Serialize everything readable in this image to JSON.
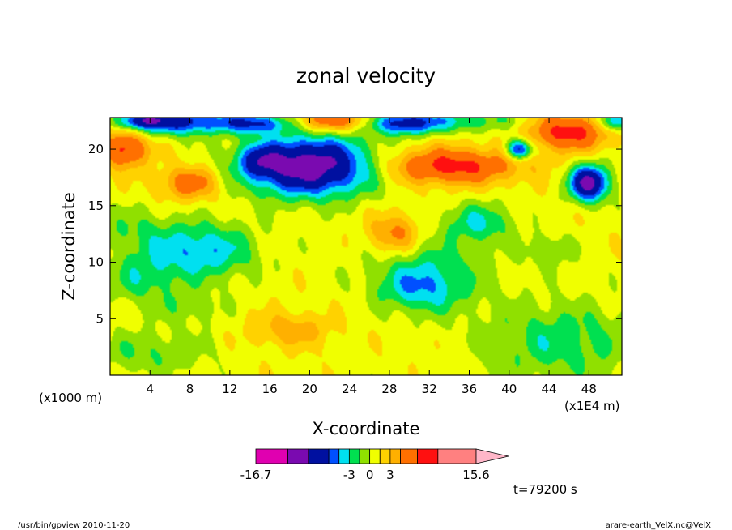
{
  "chart_data": {
    "type": "heatmap",
    "title": "zonal velocity",
    "xlabel": "X-coordinate",
    "ylabel": "Z-coordinate",
    "x_scale_note": "(x1E4 m)",
    "y_scale_note": "(x1000 m)",
    "xlim": [
      0.0,
      51.3
    ],
    "ylim": [
      0.0,
      22.8
    ],
    "x_ticks": [
      4,
      8,
      12,
      16,
      20,
      24,
      28,
      32,
      36,
      40,
      44,
      48
    ],
    "y_ticks": [
      5,
      10,
      15,
      20
    ],
    "colorbar": {
      "min_label": "-16.7",
      "max_label": "15.6",
      "tick_labels": [
        "-3",
        "0",
        "3"
      ],
      "bins": [
        {
          "lo": -16.7,
          "hi": -12.0,
          "color": "#e000b0"
        },
        {
          "lo": -12.0,
          "hi": -9.0,
          "color": "#7a0ab0"
        },
        {
          "lo": -9.0,
          "hi": -6.0,
          "color": "#0010a0"
        },
        {
          "lo": -6.0,
          "hi": -4.5,
          "color": "#0050ff"
        },
        {
          "lo": -4.5,
          "hi": -3.0,
          "color": "#00e0f0"
        },
        {
          "lo": -3.0,
          "hi": -1.5,
          "color": "#00e050"
        },
        {
          "lo": -1.5,
          "hi": 0.0,
          "color": "#90e000"
        },
        {
          "lo": 0.0,
          "hi": 1.5,
          "color": "#f0ff00"
        },
        {
          "lo": 1.5,
          "hi": 3.0,
          "color": "#ffd200"
        },
        {
          "lo": 3.0,
          "hi": 4.5,
          "color": "#ffb000"
        },
        {
          "lo": 4.5,
          "hi": 7.0,
          "color": "#ff7000"
        },
        {
          "lo": 7.0,
          "hi": 10.0,
          "color": "#ff1010"
        },
        {
          "lo": 10.0,
          "hi": 15.6,
          "color": "#ff8080"
        }
      ],
      "overflow_color": "#ffb6c8"
    },
    "time_label": "t=79200 s",
    "field_features": [
      {
        "x": 20.0,
        "z": 18.5,
        "sx": 6.5,
        "sz": 2.6,
        "amp": -12.0
      },
      {
        "x": 15.0,
        "z": 19.0,
        "sx": 2.0,
        "sz": 1.3,
        "amp": -4.0
      },
      {
        "x": 7.0,
        "z": 22.5,
        "sx": 4.0,
        "sz": 1.2,
        "amp": -8.0
      },
      {
        "x": 3.0,
        "z": 22.5,
        "sx": 2.5,
        "sz": 0.8,
        "amp": -7.0
      },
      {
        "x": 22.0,
        "z": 22.5,
        "sx": 4.0,
        "sz": 1.0,
        "amp": 6.0
      },
      {
        "x": 29.5,
        "z": 22.3,
        "sx": 3.5,
        "sz": 1.0,
        "amp": -8.0
      },
      {
        "x": 36.0,
        "z": 22.5,
        "sx": 5.0,
        "sz": 1.0,
        "amp": -3.5
      },
      {
        "x": 46.0,
        "z": 21.5,
        "sx": 4.0,
        "sz": 1.6,
        "amp": 7.0
      },
      {
        "x": 50.5,
        "z": 22.5,
        "sx": 1.5,
        "sz": 0.9,
        "amp": -7.0
      },
      {
        "x": 1.5,
        "z": 20.0,
        "sx": 2.2,
        "sz": 1.6,
        "amp": 7.0
      },
      {
        "x": 8.0,
        "z": 17.0,
        "sx": 3.0,
        "sz": 1.5,
        "amp": 5.0
      },
      {
        "x": 34.0,
        "z": 18.5,
        "sx": 7.0,
        "sz": 1.6,
        "amp": 7.0
      },
      {
        "x": 41.0,
        "z": 20.0,
        "sx": 1.3,
        "sz": 0.9,
        "amp": -9.0
      },
      {
        "x": 48.0,
        "z": 17.0,
        "sx": 2.0,
        "sz": 1.6,
        "amp": -11.0
      },
      {
        "x": 28.5,
        "z": 12.5,
        "sx": 2.5,
        "sz": 1.8,
        "amp": 4.5
      },
      {
        "x": 9.0,
        "z": 11.0,
        "sx": 5.5,
        "sz": 2.5,
        "amp": -5.5
      },
      {
        "x": 32.0,
        "z": 9.0,
        "sx": 6.0,
        "sz": 3.0,
        "amp": -3.5
      },
      {
        "x": 31.0,
        "z": 7.5,
        "sx": 4.0,
        "sz": 2.0,
        "amp": -3.0
      },
      {
        "x": 37.0,
        "z": 13.5,
        "sx": 3.5,
        "sz": 1.8,
        "amp": -4.0
      },
      {
        "x": 45.0,
        "z": 3.0,
        "sx": 8.0,
        "sz": 3.5,
        "amp": -3.5
      },
      {
        "x": 4.0,
        "z": 2.0,
        "sx": 6.0,
        "sz": 2.0,
        "amp": -2.5
      },
      {
        "x": 18.0,
        "z": 4.0,
        "sx": 4.0,
        "sz": 1.5,
        "amp": 3.0
      },
      {
        "x": 2.0,
        "z": 13.0,
        "sx": 4.0,
        "sz": 2.0,
        "amp": -2.0
      },
      {
        "x": 8.0,
        "z": 6.0,
        "sx": 3.5,
        "sz": 1.6,
        "amp": -2.0
      },
      {
        "x": 44.0,
        "z": 11.0,
        "sx": 2.5,
        "sz": 1.5,
        "amp": -2.5
      },
      {
        "x": 14.5,
        "z": 22.3,
        "sx": 4.0,
        "sz": 0.9,
        "amp": -7.0
      }
    ]
  },
  "footer": {
    "left": "/usr/bin/gpview  2010-11-20",
    "right": "arare-earth_VelX.nc@VelX"
  }
}
